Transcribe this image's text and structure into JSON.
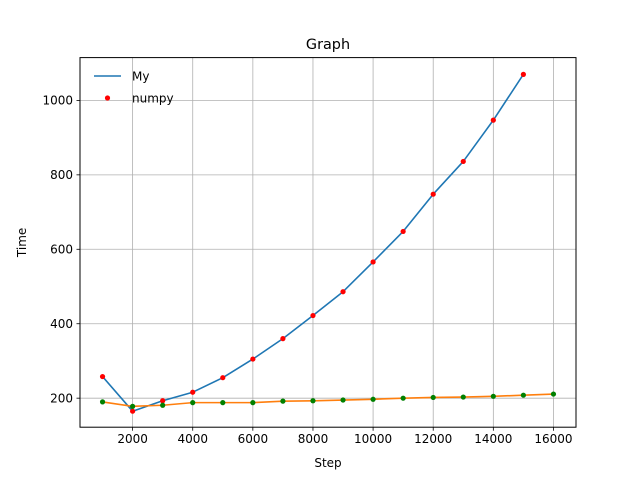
{
  "chart_data": {
    "type": "line",
    "title": "Graph",
    "xlabel": "Step",
    "ylabel": "Time",
    "xlim": [
      250,
      16750
    ],
    "ylim": [
      122,
      1115
    ],
    "x_ticks": [
      2000,
      4000,
      6000,
      8000,
      10000,
      12000,
      14000,
      16000
    ],
    "y_ticks": [
      200,
      400,
      600,
      800,
      1000
    ],
    "grid": true,
    "legend": {
      "position": "top-left",
      "entries": [
        "My",
        "numpy"
      ]
    },
    "series": [
      {
        "name": "My",
        "style": "line",
        "color": "#1f77b4",
        "x": [
          1000,
          2000,
          3000,
          4000,
          5000,
          6000,
          7000,
          8000,
          9000,
          10000,
          11000,
          12000,
          13000,
          14000,
          15000
        ],
        "values": [
          258,
          165,
          193,
          216,
          255,
          305,
          360,
          422,
          486,
          566,
          648,
          748,
          836,
          947,
          1070
        ]
      },
      {
        "name": "",
        "style": "line",
        "color": "#ff7f0e",
        "x": [
          1000,
          2000,
          3000,
          4000,
          5000,
          6000,
          7000,
          8000,
          9000,
          10000,
          11000,
          12000,
          13000,
          14000,
          15000,
          16000
        ],
        "values": [
          190,
          178,
          181,
          188,
          188,
          188,
          192,
          193,
          195,
          197,
          200,
          202,
          203,
          205,
          208,
          211
        ]
      },
      {
        "name": "numpy",
        "style": "markers",
        "color": "#ff0000",
        "x": [
          1000,
          2000,
          3000,
          4000,
          5000,
          6000,
          7000,
          8000,
          9000,
          10000,
          11000,
          12000,
          13000,
          14000,
          15000
        ],
        "values": [
          258,
          165,
          193,
          216,
          255,
          305,
          360,
          422,
          486,
          566,
          648,
          748,
          836,
          947,
          1070
        ]
      },
      {
        "name": "",
        "style": "markers",
        "color": "#008000",
        "x": [
          1000,
          2000,
          3000,
          4000,
          5000,
          6000,
          7000,
          8000,
          9000,
          10000,
          11000,
          12000,
          13000,
          14000,
          15000,
          16000
        ],
        "values": [
          190,
          178,
          181,
          188,
          188,
          188,
          192,
          193,
          195,
          197,
          200,
          202,
          203,
          205,
          208,
          211
        ]
      }
    ]
  }
}
